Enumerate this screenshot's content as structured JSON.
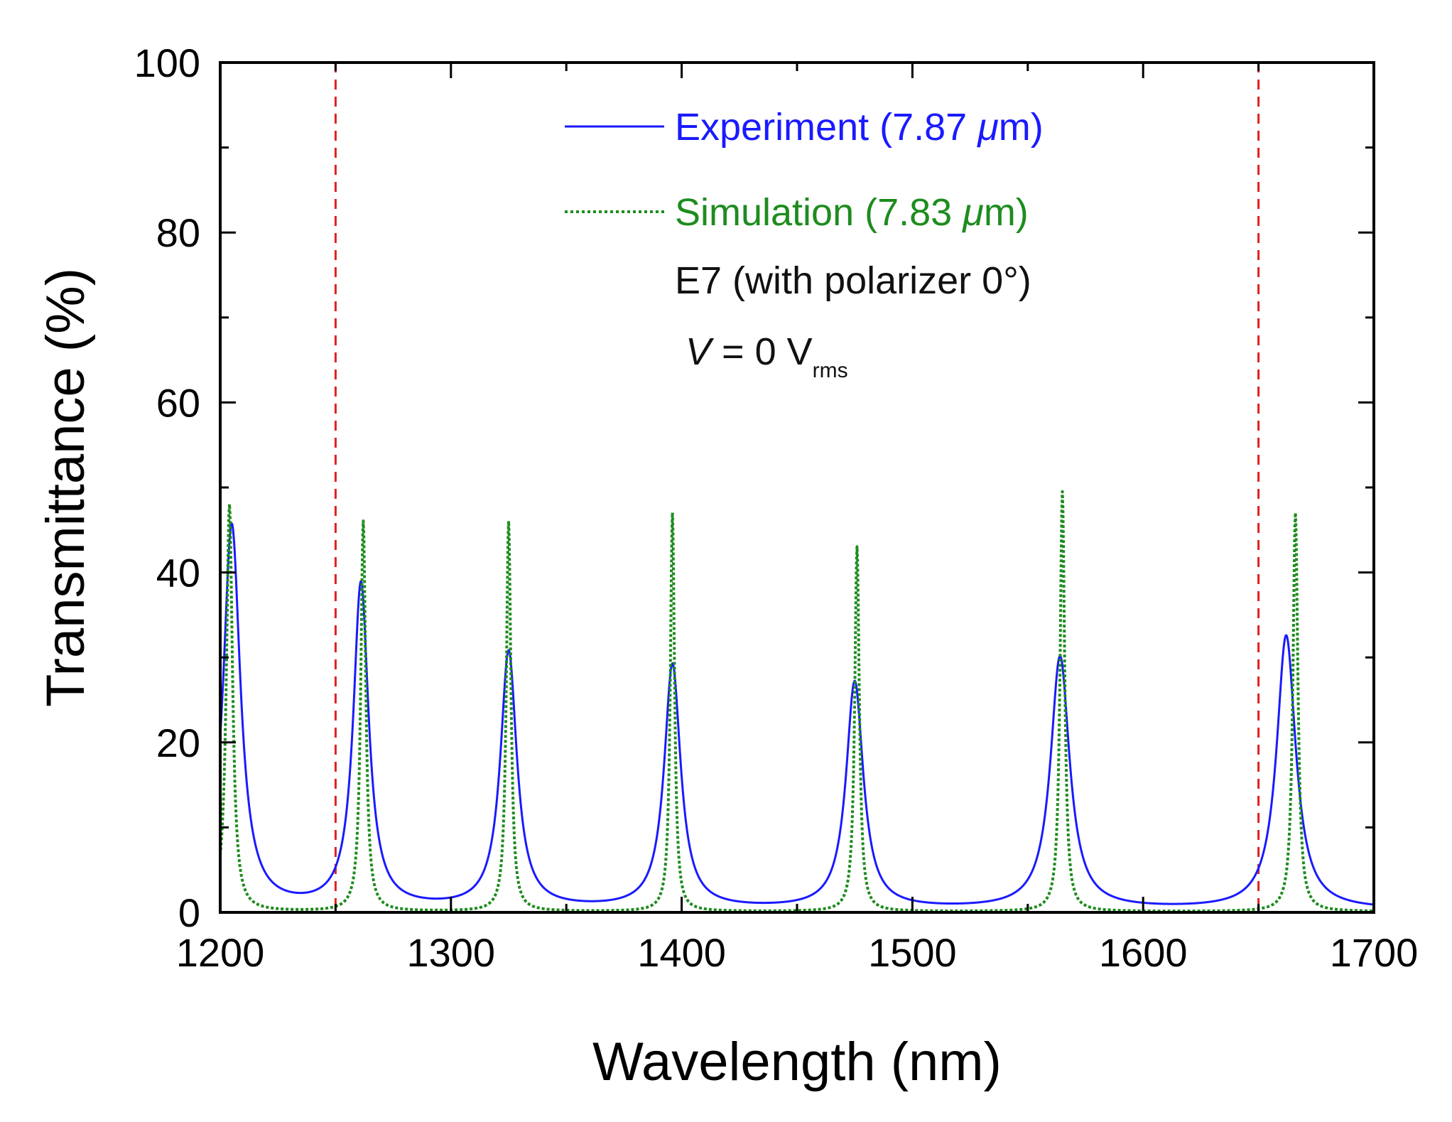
{
  "chart_data": {
    "type": "line",
    "title": "",
    "xlabel": "Wavelength (nm)",
    "ylabel": "Transmittance (%)",
    "xlim": [
      1200,
      1700
    ],
    "ylim": [
      0,
      100
    ],
    "xticks": [
      1200,
      1300,
      1400,
      1500,
      1600,
      1700
    ],
    "yticks": [
      0,
      20,
      40,
      60,
      80,
      100
    ],
    "grid": false,
    "legend_position": "top-right",
    "series": [
      {
        "name": "Experiment (7.87 μm)",
        "legend_prefix": "Experiment (7.87 ",
        "legend_unit_italic": "μ",
        "legend_suffix": "m)",
        "color": "#1a1aff",
        "style": "solid",
        "peaks": [
          {
            "x": 1205,
            "y": 45.5,
            "hwhm": 4.5
          },
          {
            "x": 1261,
            "y": 38.5,
            "hwhm": 4.0
          },
          {
            "x": 1325,
            "y": 30.5,
            "hwhm": 4.3
          },
          {
            "x": 1396,
            "y": 29.0,
            "hwhm": 4.3
          },
          {
            "x": 1475,
            "y": 27.0,
            "hwhm": 4.5
          },
          {
            "x": 1564,
            "y": 30.0,
            "hwhm": 5.0
          },
          {
            "x": 1662,
            "y": 32.5,
            "hwhm": 5.0
          }
        ],
        "baseline": 0.3
      },
      {
        "name": "Simulation (7.83 μm)",
        "legend_prefix": "Simulation (7.83 ",
        "legend_unit_italic": "μ",
        "legend_suffix": "m)",
        "color": "#1e8c1e",
        "style": "dotted",
        "peaks": [
          {
            "x": 1204,
            "y": 48.0,
            "hwhm": 1.6
          },
          {
            "x": 1262,
            "y": 46.0,
            "hwhm": 1.3
          },
          {
            "x": 1325,
            "y": 46.0,
            "hwhm": 1.2
          },
          {
            "x": 1396,
            "y": 47.0,
            "hwhm": 1.1
          },
          {
            "x": 1476,
            "y": 43.0,
            "hwhm": 1.2
          },
          {
            "x": 1565,
            "y": 49.5,
            "hwhm": 1.2
          },
          {
            "x": 1666,
            "y": 47.0,
            "hwhm": 1.3
          }
        ],
        "baseline": 0.1
      }
    ],
    "vertical_lines": [
      {
        "x": 1250,
        "color": "#e02020",
        "style": "dashed"
      },
      {
        "x": 1650,
        "color": "#e02020",
        "style": "dashed"
      }
    ],
    "annotations": {
      "material": "E7 (with polarizer 0°)",
      "voltage_symbol": "V",
      "voltage_value": " = 0 V",
      "voltage_subscript": "rms"
    }
  }
}
